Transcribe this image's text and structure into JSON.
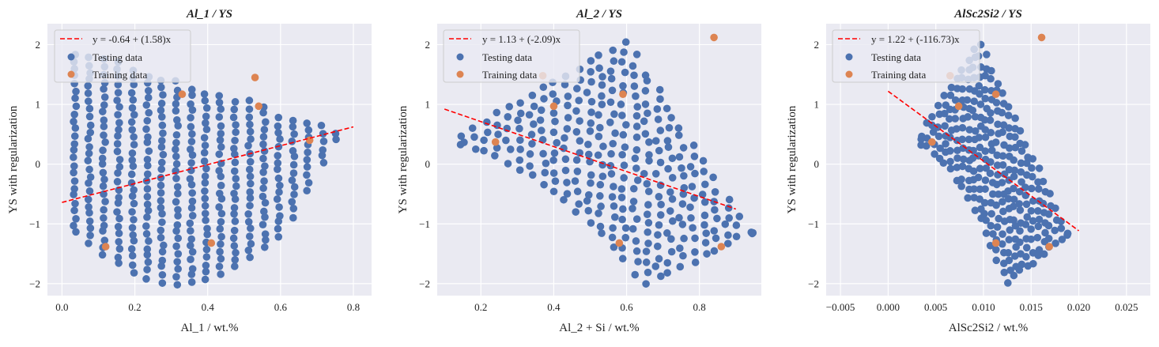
{
  "charts": [
    {
      "title": "Al_1 / YS",
      "xlabel": "Al_1 / wt.%",
      "ylabel": "YS with regularization",
      "xticks": [
        "0.0",
        "0.2",
        "0.4",
        "0.6",
        "0.8"
      ],
      "yticks": [
        "−2",
        "−1",
        "0",
        "1",
        "2"
      ],
      "legend": [
        "y = -0.64 + (1.58)x",
        "Testing data",
        "Training data"
      ]
    },
    {
      "title": "Al_2 / YS",
      "xlabel": "Al_2 + Si / wt.%",
      "ylabel": "YS with regularization",
      "xticks": [
        "0.2",
        "0.4",
        "0.6",
        "0.8"
      ],
      "yticks": [
        "−2",
        "−1",
        "0",
        "1",
        "2"
      ],
      "legend": [
        "y = 1.13 + (-2.09)x",
        "Testing data",
        "Training data"
      ]
    },
    {
      "title": "AlSc2Si2 / YS",
      "xlabel": "AlSc2Si2 / wt.%",
      "ylabel": "YS with regularization",
      "xticks": [
        "−0.005",
        "0.000",
        "0.005",
        "0.010",
        "0.015",
        "0.020",
        "0.025"
      ],
      "yticks": [
        "−2",
        "−1",
        "0",
        "1",
        "2"
      ],
      "legend": [
        "y = 1.22 + (-116.73)x",
        "Testing data",
        "Training data"
      ]
    }
  ],
  "chart_data": [
    {
      "type": "scatter",
      "title": "Al_1 / YS",
      "xlabel": "Al_1 / wt.%",
      "ylabel": "YS with regularization",
      "xlim": [
        -0.04,
        0.85
      ],
      "ylim": [
        -2.2,
        2.35
      ],
      "xtick_values": [
        0.0,
        0.2,
        0.4,
        0.6,
        0.8
      ],
      "ytick_values": [
        -2,
        -1,
        0,
        1,
        2
      ],
      "fit": {
        "label": "y = -0.64 + (1.58)x",
        "intercept": -0.64,
        "slope": 1.58,
        "x_range": [
          0.0,
          0.8
        ],
        "color": "#ff0000"
      },
      "training": [
        [
          0.12,
          -1.38
        ],
        [
          0.33,
          1.17
        ],
        [
          0.41,
          -1.32
        ],
        [
          0.53,
          1.45
        ],
        [
          0.54,
          0.97
        ],
        [
          0.68,
          0.4
        ]
      ],
      "testing_grid": {
        "x_start": 0.035,
        "x_step": 0.04,
        "x_count": 19,
        "upper": [
          1.95,
          0.1
        ],
        "lower": [
          -1.15,
          -2.0
        ],
        "apex": [
          0.76,
          0.3
        ],
        "row_step": 0.125
      },
      "legend_position": "top-left",
      "grid": true
    },
    {
      "type": "scatter",
      "title": "Al_2 / YS",
      "xlabel": "Al_2 + Si / wt.%",
      "ylabel": "YS with regularization",
      "xlim": [
        0.08,
        0.97
      ],
      "ylim": [
        -2.2,
        2.35
      ],
      "xtick_values": [
        0.2,
        0.4,
        0.6,
        0.8
      ],
      "ytick_values": [
        -2,
        -1,
        0,
        1,
        2
      ],
      "fit": {
        "label": "y = 1.13 + (-2.09)x",
        "intercept": 1.13,
        "slope": -2.09,
        "x_range": [
          0.1,
          0.9
        ],
        "color": "#ff0000"
      },
      "training": [
        [
          0.24,
          0.37
        ],
        [
          0.37,
          1.48
        ],
        [
          0.4,
          0.97
        ],
        [
          0.58,
          -1.32
        ],
        [
          0.59,
          1.17
        ],
        [
          0.84,
          2.12
        ],
        [
          0.86,
          -1.38
        ]
      ],
      "testing_upper": [
        [
          0.15,
          0.5
        ],
        [
          0.6,
          2.05
        ],
        [
          0.94,
          -1.15
        ]
      ],
      "testing_lower": [
        [
          0.15,
          0.5
        ],
        [
          0.65,
          -2.0
        ],
        [
          0.94,
          -1.15
        ]
      ],
      "legend_position": "top-left",
      "grid": true
    },
    {
      "type": "scatter",
      "title": "AlSc2Si2 / YS",
      "xlabel": "AlSc2Si2 / wt.%",
      "ylabel": "YS with regularization",
      "xlim": [
        -0.0065,
        0.0275
      ],
      "ylim": [
        -2.2,
        2.35
      ],
      "xtick_values": [
        -0.005,
        0.0,
        0.005,
        0.01,
        0.015,
        0.02,
        0.025
      ],
      "ytick_values": [
        -2,
        -1,
        0,
        1,
        2
      ],
      "fit": {
        "label": "y = 1.22 + (-116.73)x",
        "intercept": 1.22,
        "slope": -116.73,
        "x_range": [
          0.0,
          0.02
        ],
        "color": "#ff0000"
      },
      "training": [
        [
          0.0046,
          0.37
        ],
        [
          0.0065,
          1.48
        ],
        [
          0.0074,
          0.97
        ],
        [
          0.0113,
          -1.32
        ],
        [
          0.0113,
          1.17
        ],
        [
          0.0161,
          2.12
        ],
        [
          0.0169,
          -1.38
        ]
      ],
      "testing_upper": [
        [
          0.0035,
          0.5
        ],
        [
          0.0095,
          2.05
        ],
        [
          0.0188,
          -1.15
        ]
      ],
      "testing_lower": [
        [
          0.0035,
          0.5
        ],
        [
          0.0125,
          -2.0
        ],
        [
          0.0188,
          -1.15
        ]
      ],
      "legend_position": "top-left",
      "grid": true
    }
  ],
  "colors": {
    "testing": "#4c72b0",
    "training": "#dd8452",
    "fit": "#ff0000",
    "background": "#eaeaf2"
  }
}
